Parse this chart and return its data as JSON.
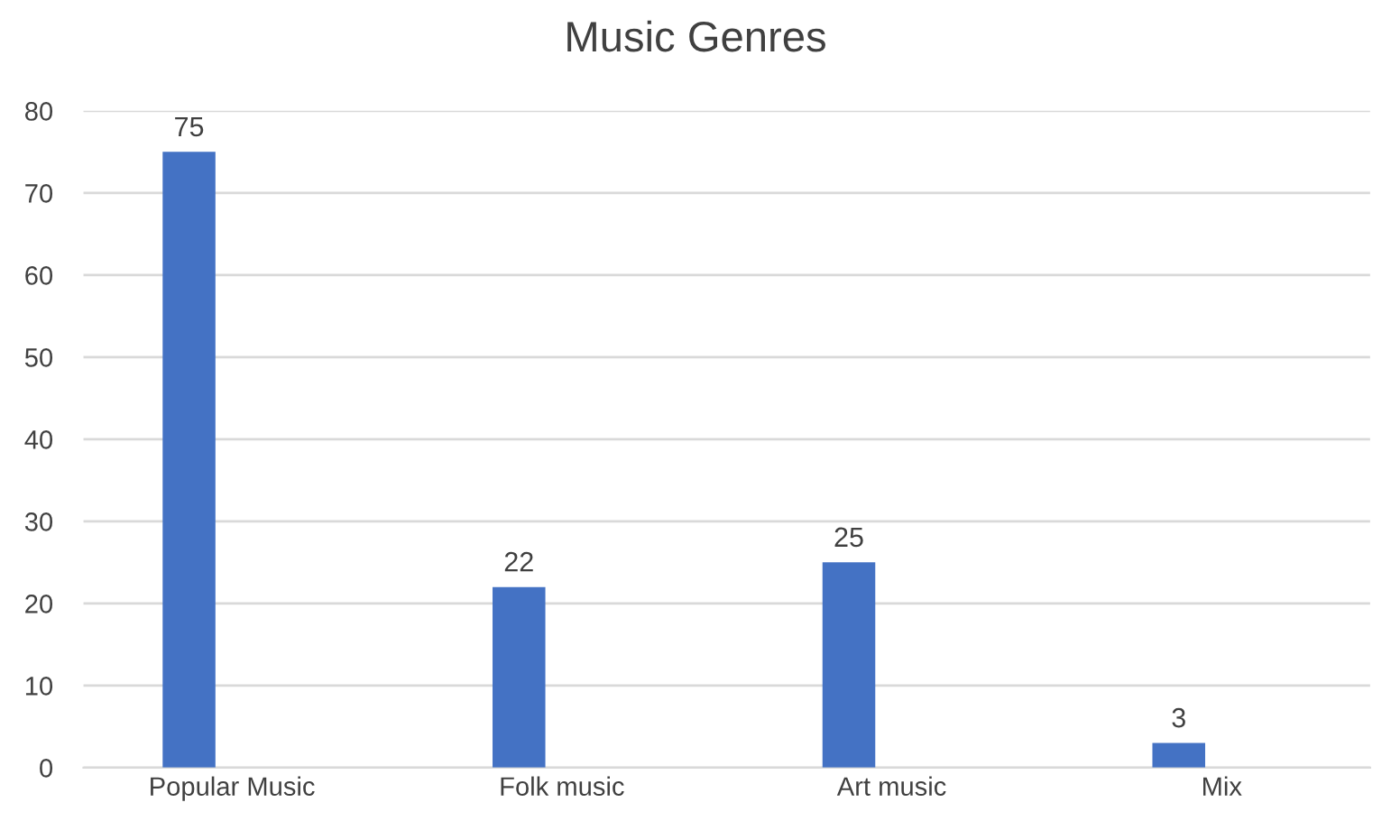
{
  "chart_data": {
    "type": "bar",
    "title": "Music Genres",
    "categories": [
      "Popular Music",
      "Folk music",
      "Art music",
      "Mix"
    ],
    "values": [
      75,
      22,
      25,
      3
    ],
    "color": "#4472c4",
    "ylim": [
      0,
      80
    ],
    "yticks": [
      0,
      10,
      20,
      30,
      40,
      50,
      60,
      70,
      80
    ],
    "grid": "y",
    "data_labels": true
  }
}
